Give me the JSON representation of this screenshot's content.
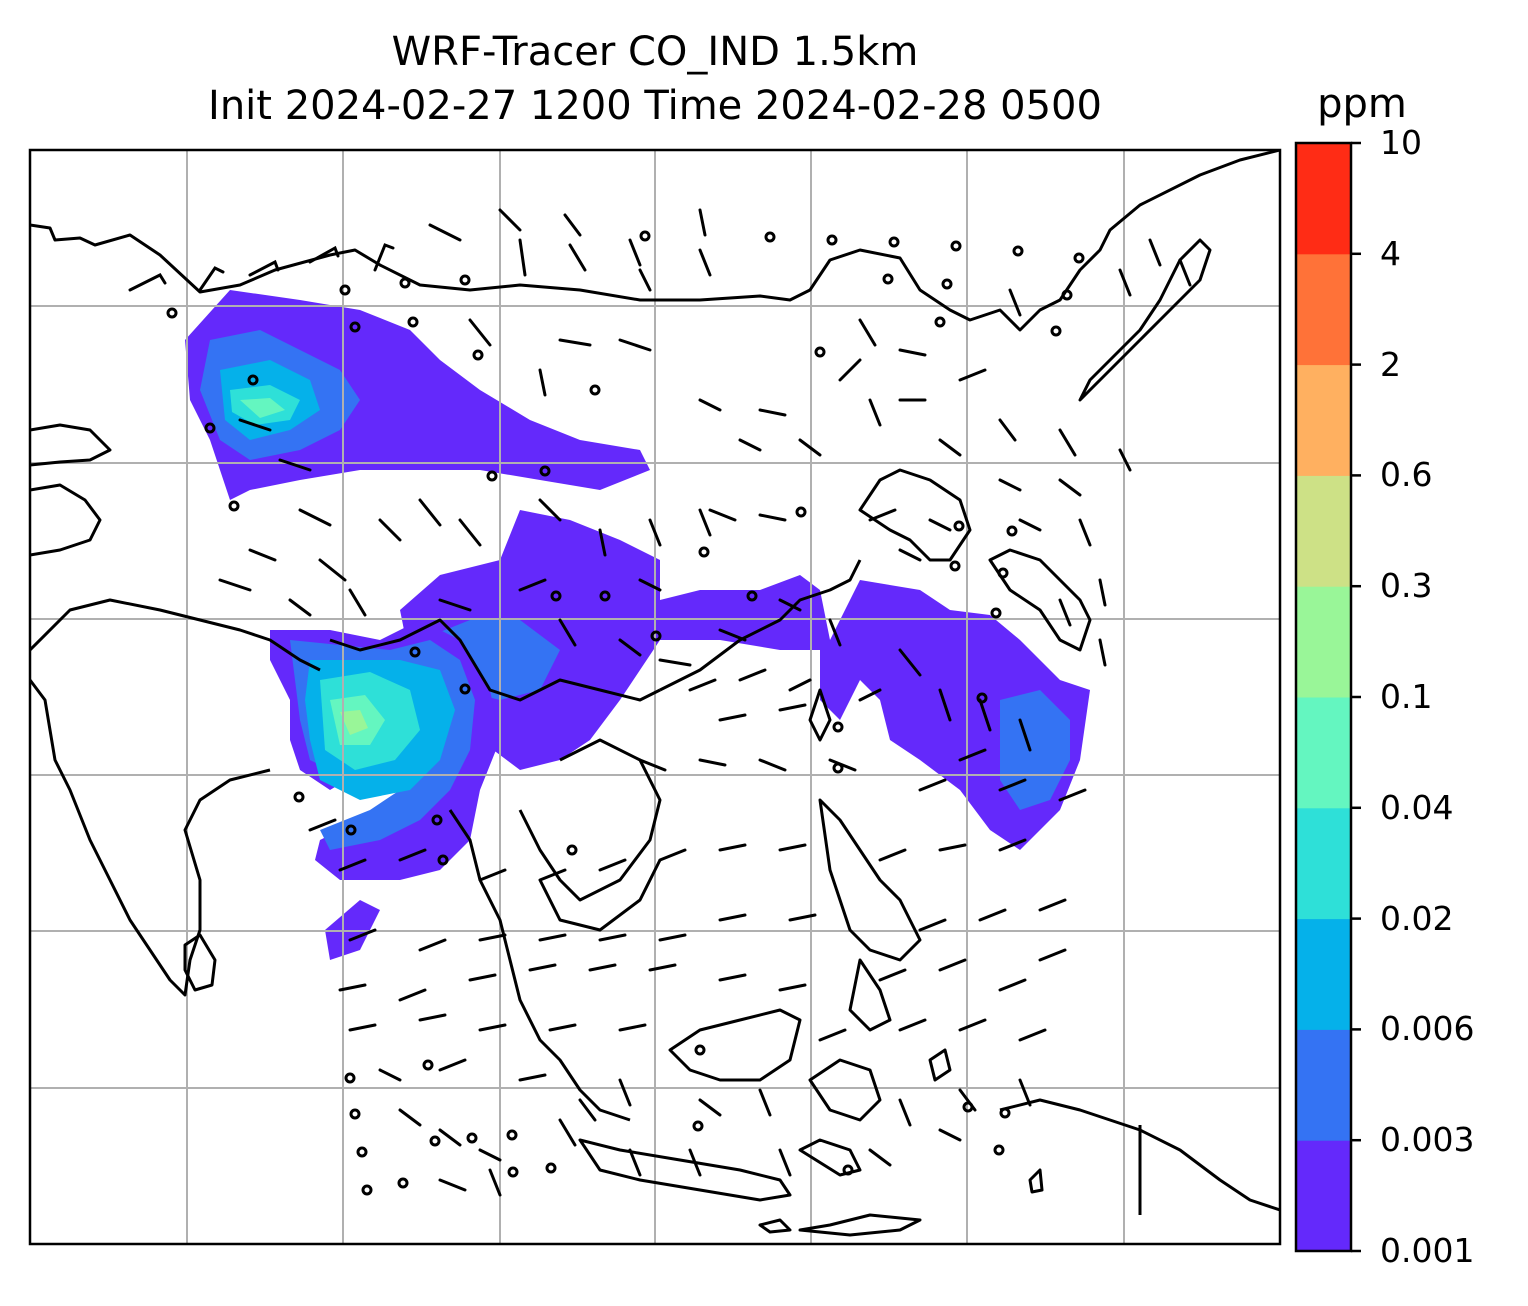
{
  "title": {
    "line1": "WRF-Tracer CO_IND 1.5km",
    "line2": "Init 2024-02-27 1200 Time 2024-02-28 0500"
  },
  "colorbar": {
    "unit": "ppm",
    "levels": [
      "0.001",
      "0.003",
      "0.006",
      "0.02",
      "0.04",
      "0.1",
      "0.3",
      "0.6",
      "2",
      "4",
      "10"
    ],
    "colors": [
      "#6429fb",
      "#3473f3",
      "#05b1ea",
      "#2ee0d8",
      "#64f6c0",
      "#99f698",
      "#cde186",
      "#ffb060",
      "#ff7238",
      "#ff2c15"
    ]
  },
  "map": {
    "frame_color": "#000000",
    "gridline_color": "#b0b0b0",
    "coastline_color": "#000000",
    "wind_barb_color": "#000000",
    "plume_colors_used": [
      "#6429fb",
      "#3473f3",
      "#05b1ea",
      "#2ee0d8",
      "#64f6c0",
      "#99f698"
    ]
  }
}
